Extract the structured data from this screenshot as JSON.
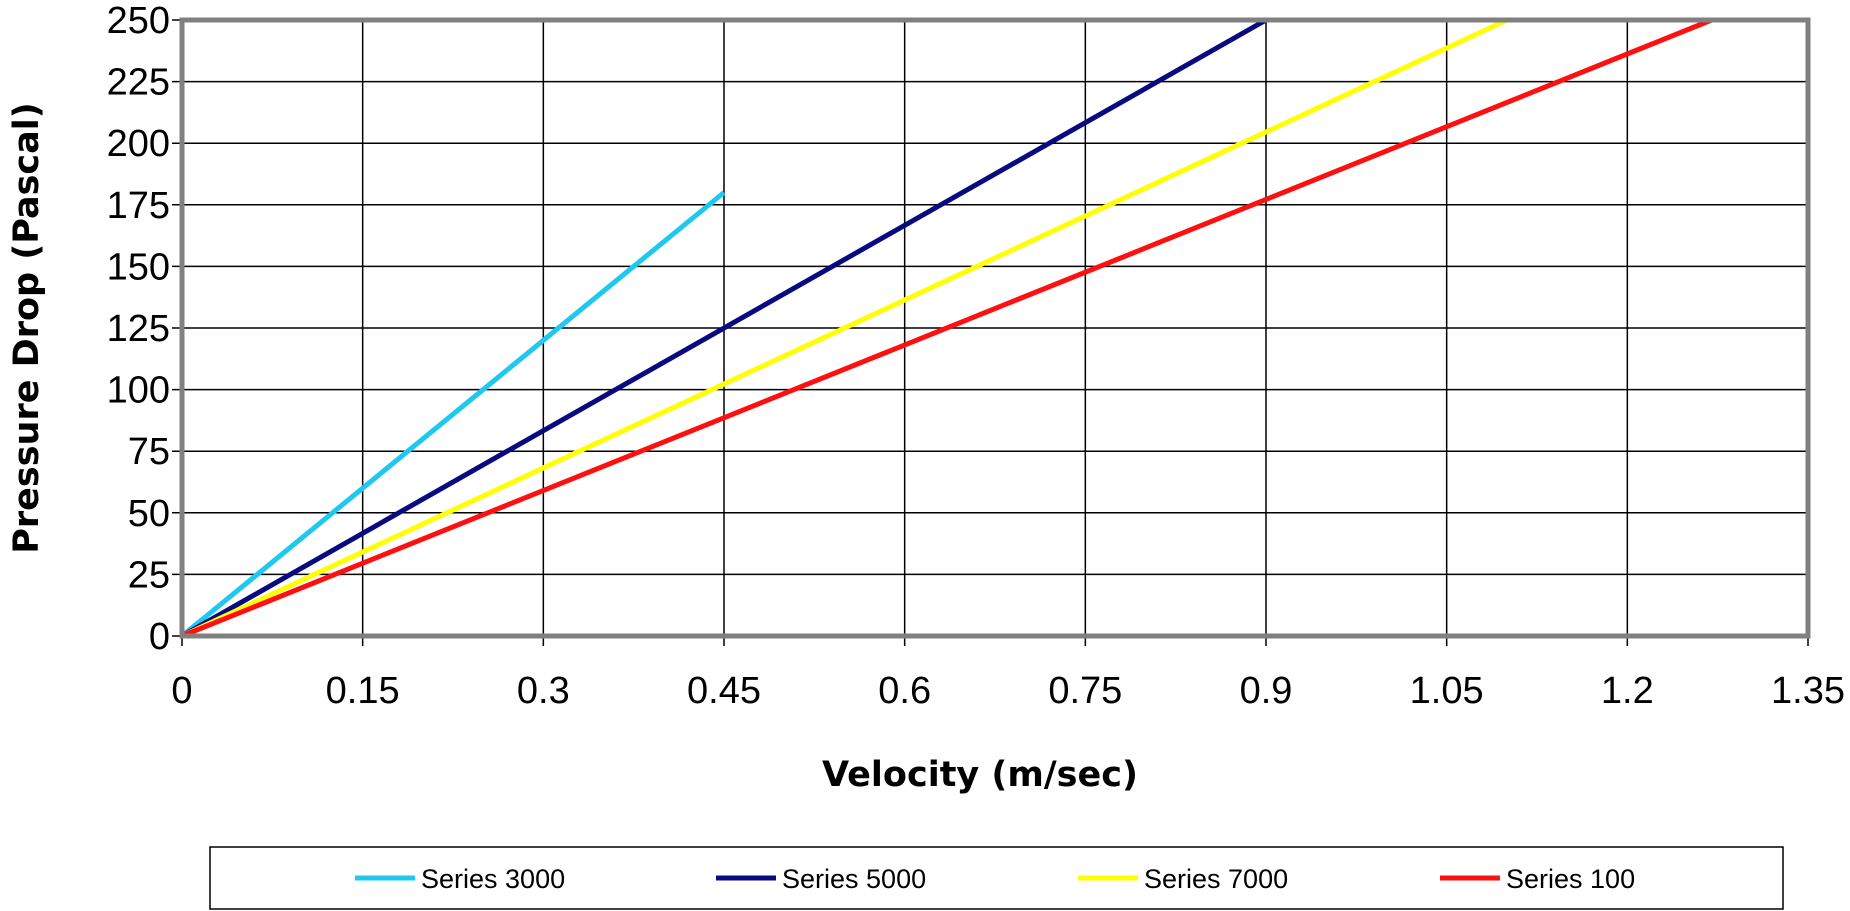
{
  "chart_data": {
    "type": "line",
    "title": "",
    "xlabel": "Velocity (m/sec)",
    "ylabel": "Pressure Drop (Pascal)",
    "xlim": [
      0,
      1.35
    ],
    "ylim": [
      0,
      250
    ],
    "x_ticks": [
      "0",
      "0.15",
      "0.3",
      "0.45",
      "0.6",
      "0.75",
      "0.9",
      "1.05",
      "1.2",
      "1.35"
    ],
    "y_ticks": [
      "0",
      "25",
      "50",
      "75",
      "100",
      "125",
      "150",
      "175",
      "200",
      "225",
      "250"
    ],
    "grid": true,
    "legend_position": "bottom",
    "series": [
      {
        "name": "Series 3000",
        "color": "#1ec8f0",
        "x": [
          0,
          0.45
        ],
        "y": [
          0,
          180
        ]
      },
      {
        "name": "Series 5000",
        "color": "#0a0a80",
        "x": [
          0,
          0.9
        ],
        "y": [
          0,
          250
        ]
      },
      {
        "name": "Series 7000",
        "color": "#ffff00",
        "x": [
          0,
          1.1
        ],
        "y": [
          0,
          250
        ]
      },
      {
        "name": "Series 100",
        "color": "#ff1010",
        "x": [
          0,
          1.27
        ],
        "y": [
          0,
          250
        ]
      }
    ]
  }
}
